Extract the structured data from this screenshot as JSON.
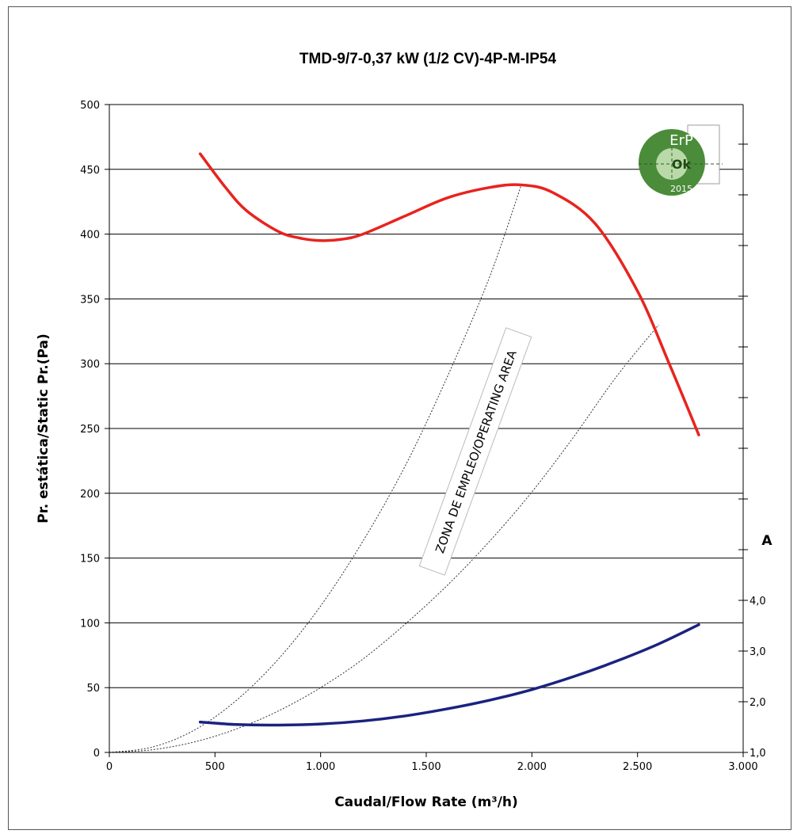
{
  "chart_data": {
    "type": "line",
    "title": "TMD-9/7-0,37 kW (1/2 CV)-4P-M-IP54",
    "xlabel": "Caudal/Flow Rate (m³/h)",
    "ylabel": "Pr. estática/Static Pr.(Pa)",
    "y2label": "A",
    "xlim": [
      0,
      3000
    ],
    "ylim": [
      0,
      500
    ],
    "y2lim": [
      1.0,
      4.0
    ],
    "x_ticks": [
      "0",
      "500",
      "1.000",
      "1.500",
      "2.000",
      "2.500",
      "3.000"
    ],
    "y_ticks": [
      "0",
      "50",
      "100",
      "150",
      "200",
      "250",
      "300",
      "350",
      "400",
      "450",
      "500"
    ],
    "y2_ticks": [
      "1,0",
      "2,0",
      "3,0",
      "4,0"
    ],
    "grid": "horizontal",
    "series": [
      {
        "color": "#e8231e",
        "axis": "left",
        "x": [
          430,
          550,
          650,
          800,
          900,
          1000,
          1100,
          1200,
          1400,
          1600,
          1800,
          1950,
          2100,
          2300,
          2500,
          2650,
          2790
        ],
        "y": [
          462,
          436,
          418,
          402,
          397,
          395,
          396,
          400,
          414,
          428,
          436,
          438,
          432,
          408,
          356,
          300,
          245
        ]
      },
      {
        "color": "#1a237e",
        "axis": "right",
        "x": [
          430,
          600,
          800,
          1000,
          1200,
          1400,
          1600,
          1800,
          2000,
          2200,
          2400,
          2600,
          2790
        ],
        "y": [
          1.6,
          1.55,
          1.54,
          1.56,
          1.62,
          1.72,
          1.86,
          2.03,
          2.24,
          2.5,
          2.8,
          3.14,
          3.52
        ]
      },
      {
        "color": "#333333",
        "dashed": true,
        "axis": "left",
        "x": [
          0,
          200,
          400,
          600,
          800,
          1000,
          1200,
          1400,
          1600,
          1800,
          1950
        ],
        "y": [
          0,
          4,
          17,
          40,
          72,
          113,
          163,
          221,
          290,
          367,
          438
        ]
      },
      {
        "color": "#333333",
        "dashed": true,
        "axis": "left",
        "x": [
          0,
          200,
          400,
          600,
          800,
          1000,
          1200,
          1400,
          1600,
          1800,
          2000,
          2200,
          2400,
          2600
        ],
        "y": [
          0,
          2,
          8,
          18,
          32,
          50,
          72,
          99,
          129,
          163,
          201,
          244,
          290,
          330
        ]
      }
    ],
    "annotations": [
      {
        "text": "ZONA DE EMPLEO/OPERATING AREA"
      }
    ],
    "logo": {
      "top": "ErP",
      "middle": "Ok",
      "bottom": "2015",
      "color": "#4a8c3a"
    }
  }
}
